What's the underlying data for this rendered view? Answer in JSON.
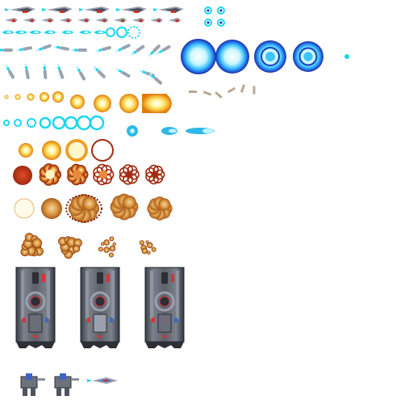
{
  "sheet": {
    "background": "#ffffff",
    "palette": {
      "ship_hull": "#9aa3b0",
      "ship_dark": "#4a5060",
      "engine_red": "#d03020",
      "cyan": "#19d6f0",
      "cyan_light": "#a8f4ff",
      "blue_ring": "#1a3fb8",
      "blue_glow": "#6fc8ff",
      "orange": "#f0a020",
      "yellow": "#ffe860",
      "fire_dark": "#a02a10",
      "fire_mid": "#c96a1a",
      "smoke": "#c78a3a",
      "debris": "#b8a890",
      "hull_grey": "#5a5e66",
      "hull_dark": "#2c2f36",
      "panel_red": "#d8323a"
    }
  },
  "rows": [
    {
      "name": "fighter-ships",
      "icon": "fighter-ship",
      "count": 5
    },
    {
      "name": "small-orb-pairs",
      "icon": "energy-orb",
      "count": 2
    },
    {
      "name": "small-fighters",
      "icon": "small-fighter",
      "count": 10
    },
    {
      "name": "laser-bolts",
      "icon": "laser-bolt",
      "count": 9
    },
    {
      "name": "large-plasma-orbs",
      "icon": "plasma-orb",
      "count": 5
    },
    {
      "name": "homing-missiles",
      "icon": "missile-trail",
      "count": 10
    },
    {
      "name": "debris-shards",
      "icon": "debris",
      "count": 5
    },
    {
      "name": "fireballs",
      "icon": "fireball",
      "count": 9
    },
    {
      "name": "cyan-rings",
      "icon": "cyan-ring",
      "count": 8
    },
    {
      "name": "cyan-comets",
      "icon": "cyan-comet",
      "count": 3
    },
    {
      "name": "orange-rings",
      "icon": "orange-ring",
      "count": 4
    },
    {
      "name": "explosion-red",
      "icon": "explosion",
      "count": 6
    },
    {
      "name": "explosion-smoke",
      "icon": "smoke-cloud",
      "count": 5
    },
    {
      "name": "explosion-debris",
      "icon": "debris-cloud",
      "count": 5
    },
    {
      "name": "armored-pods",
      "icon": "armored-pod",
      "count": 3
    },
    {
      "name": "mini-mechs",
      "icon": "mech",
      "count": 2
    },
    {
      "name": "player-ship",
      "icon": "player-ship",
      "count": 1
    }
  ]
}
